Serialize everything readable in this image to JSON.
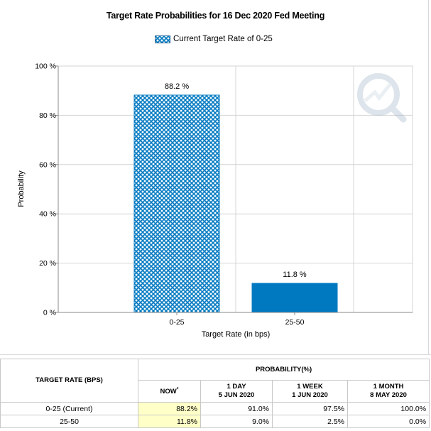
{
  "chart_data": {
    "type": "bar",
    "title": "Target Rate Probabilities for 16 Dec 2020 Fed Meeting",
    "xlabel": "Target Rate (in bps)",
    "ylabel": "Probability",
    "categories": [
      "0-25",
      "25-50"
    ],
    "series": [
      {
        "name": "Current Target Rate of 0-25",
        "values": [
          88.2,
          11.8
        ]
      }
    ],
    "data_labels": [
      "88.2 %",
      "11.8 %"
    ],
    "ylim": [
      0,
      100
    ],
    "yticks": [
      "0 %",
      "20 %",
      "40 %",
      "60 %",
      "80 %",
      "100 %"
    ],
    "ytick_values": [
      0,
      20,
      40,
      60,
      80,
      100
    ],
    "bar_fills": [
      "crosshatch",
      "solid"
    ],
    "colors": {
      "bar": "#0079c1",
      "hatch_bg": "#ffffff",
      "grid": "#d4d4d4"
    },
    "legend_position": "top-center",
    "grid": true
  },
  "table": {
    "header_left": "TARGET RATE (BPS)",
    "header_group": "PROBABILITY(%)",
    "columns": [
      {
        "line1": "NOW",
        "sup": "*",
        "line2": ""
      },
      {
        "line1": "1 DAY",
        "line2": "5 JUN 2020"
      },
      {
        "line1": "1 WEEK",
        "line2": "1 JUN 2020"
      },
      {
        "line1": "1 MONTH",
        "line2": "8 MAY 2020"
      }
    ],
    "rows": [
      {
        "label": "0-25 (Current)",
        "values": [
          "88.2%",
          "91.0%",
          "97.5%",
          "100.0%"
        ]
      },
      {
        "label": "25-50",
        "values": [
          "11.8%",
          "9.0%",
          "2.5%",
          "0.0%"
        ]
      }
    ],
    "colors": {
      "now_highlight": "#ffffc8"
    }
  },
  "icons": {
    "watermark": "cme-fedwatch-logo-icon"
  }
}
